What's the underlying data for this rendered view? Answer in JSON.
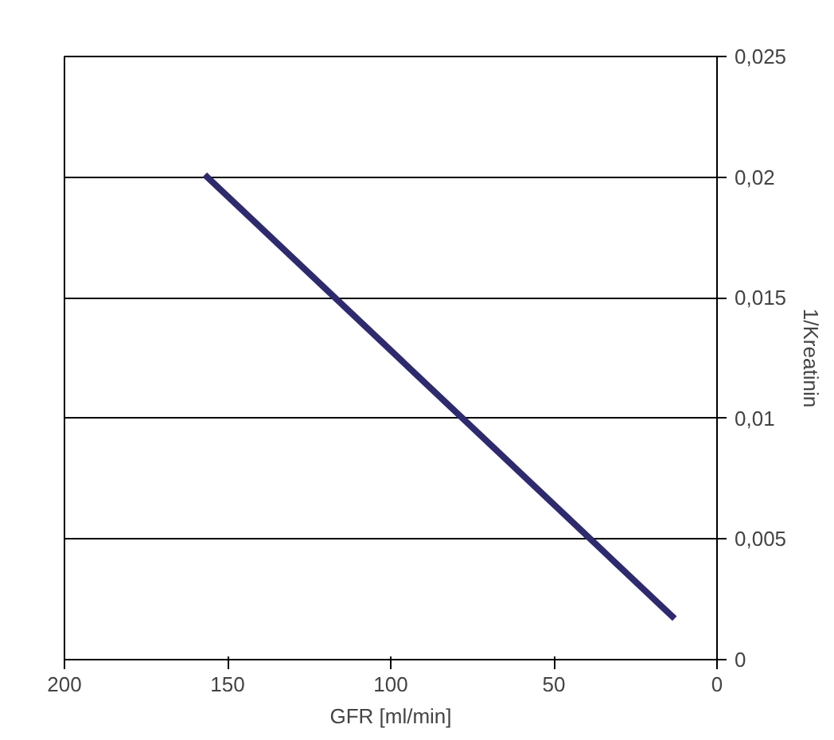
{
  "chart_data": {
    "type": "line",
    "xlabel": "GFR [ml/min]",
    "ylabel": "1/Kreatinin",
    "x": [
      157,
      13
    ],
    "series": [
      {
        "color": "#2e2a6e",
        "values": [
          0.0201,
          0.0017
        ]
      }
    ],
    "xlim": [
      200,
      0
    ],
    "xticks": [
      200,
      150,
      100,
      50,
      0
    ],
    "ylim": [
      0,
      0.025
    ],
    "yticks": [
      0,
      {
        "value": 0.005,
        "label": "0,005"
      },
      {
        "value": 0.01,
        "label": "0,01"
      },
      {
        "value": 0.015,
        "label": "0,015"
      },
      {
        "value": 0.02,
        "label": "0,02"
      },
      {
        "value": 0.025,
        "label": "0,025"
      }
    ],
    "grid": "y",
    "marker": "none",
    "line_style": "solid"
  }
}
